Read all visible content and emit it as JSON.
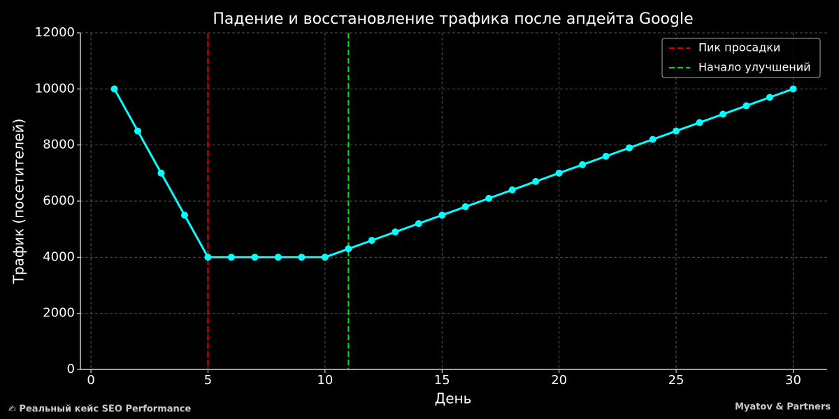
{
  "chart_data": {
    "type": "line",
    "title": "Падение и восстановление трафика после апдейта Google",
    "xlabel": "День",
    "ylabel": "Трафик (посетителей)",
    "x": [
      1,
      2,
      3,
      4,
      5,
      6,
      7,
      8,
      9,
      10,
      11,
      12,
      13,
      14,
      15,
      16,
      17,
      18,
      19,
      20,
      21,
      22,
      23,
      24,
      25,
      26,
      27,
      28,
      29,
      30
    ],
    "series": [
      {
        "color": "#00ffff",
        "values": [
          10000,
          8500,
          7000,
          5500,
          4000,
          4000,
          4000,
          4000,
          4000,
          4000,
          4300,
          4600,
          4900,
          5200,
          5500,
          5800,
          6100,
          6400,
          6700,
          7000,
          7300,
          7600,
          7900,
          8200,
          8500,
          8800,
          9100,
          9400,
          9700,
          10000
        ]
      }
    ],
    "vlines": [
      {
        "name": "Пик просадки",
        "x": 5,
        "color": "#dd0000"
      },
      {
        "name": "Начало улучшений",
        "x": 11,
        "color": "#00dd00"
      }
    ],
    "xlim": [
      -0.45,
      31.45
    ],
    "xticks": [
      0,
      5,
      10,
      15,
      20,
      25,
      30
    ],
    "ylim": [
      0,
      12000
    ],
    "yticks": [
      0,
      2000,
      4000,
      6000,
      8000,
      10000,
      12000
    ],
    "grid": true,
    "legend": "upper-right",
    "annotations": [
      "✍ Реальный кейс SEO Performance",
      "Myatov & Partners"
    ]
  }
}
